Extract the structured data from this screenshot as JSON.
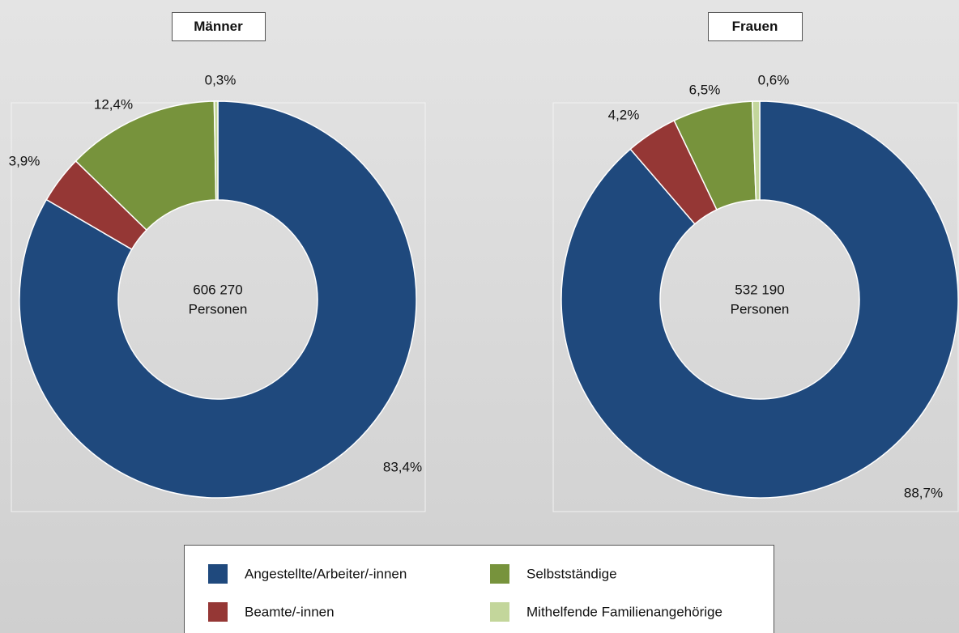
{
  "chart_data": [
    {
      "type": "donut",
      "title": "Männer",
      "categories": [
        "Angestellte/Arbeiter/-innen",
        "Beamte/-innen",
        "Selbstständige",
        "Mithelfende Familienangehörige"
      ],
      "values": [
        83.4,
        3.9,
        12.4,
        0.3
      ],
      "value_labels": [
        "83,4%",
        "3,9%",
        "12,4%",
        "0,3%"
      ],
      "colors": [
        "#1f497d",
        "#953735",
        "#77933c",
        "#c3d69b"
      ],
      "center_text": [
        "606 270",
        "Personen"
      ]
    },
    {
      "type": "donut",
      "title": "Frauen",
      "categories": [
        "Angestellte/Arbeiter/-innen",
        "Beamte/-innen",
        "Selbstständige",
        "Mithelfende Familienangehörige"
      ],
      "values": [
        88.7,
        4.2,
        6.5,
        0.6
      ],
      "value_labels": [
        "88,7%",
        "4,2%",
        "6,5%",
        "0,6%"
      ],
      "colors": [
        "#1f497d",
        "#953735",
        "#77933c",
        "#c3d69b"
      ],
      "center_text": [
        "532 190",
        "Personen"
      ]
    }
  ]
}
